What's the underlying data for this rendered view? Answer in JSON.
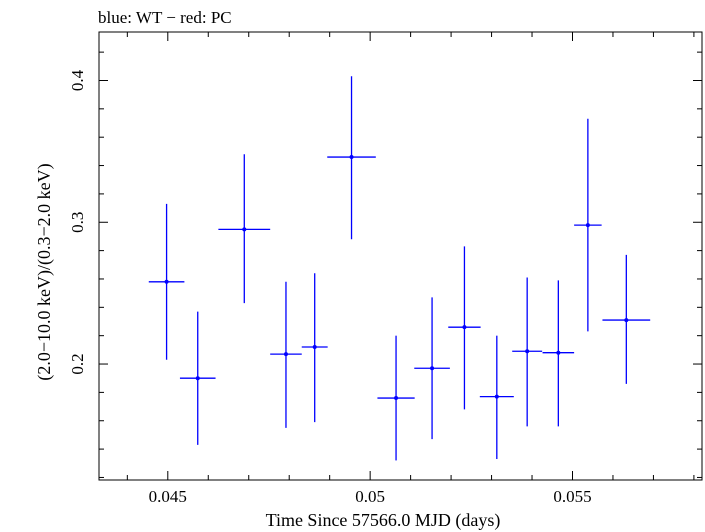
{
  "chart_data": {
    "type": "scatter",
    "title": "blue: WT − red: PC",
    "xlabel": "Time Since 57566.0 MJD (days)",
    "ylabel": "(2.0−10.0 keV)/(0.3−2.0 keV)",
    "xlim": [
      0.0433,
      0.0582
    ],
    "ylim": [
      0.1182,
      0.4342
    ],
    "x_ticks": [
      0.045,
      0.05,
      0.055
    ],
    "x_tick_labels": [
      "0.045",
      "0.05",
      "0.055"
    ],
    "y_ticks": [
      0.2,
      0.3,
      0.4
    ],
    "y_tick_labels": [
      "0.2",
      "0.3",
      "0.4"
    ],
    "grid": false,
    "series": [
      {
        "color": "#0000ff",
        "points": [
          {
            "x": 0.04497,
            "y": 0.258,
            "xerr": 0.00044,
            "ylo": 0.203,
            "yhi": 0.313
          },
          {
            "x": 0.04574,
            "y": 0.19,
            "xerr": 0.00044,
            "ylo": 0.143,
            "yhi": 0.237
          },
          {
            "x": 0.04689,
            "y": 0.295,
            "xerr": 0.00064,
            "ylo": 0.243,
            "yhi": 0.348
          },
          {
            "x": 0.04792,
            "y": 0.207,
            "xerr": 0.00039,
            "ylo": 0.155,
            "yhi": 0.258
          },
          {
            "x": 0.04863,
            "y": 0.212,
            "xerr": 0.00032,
            "ylo": 0.159,
            "yhi": 0.264
          },
          {
            "x": 0.04954,
            "y": 0.346,
            "xerr": 0.0006,
            "ylo": 0.288,
            "yhi": 0.403
          },
          {
            "x": 0.05064,
            "y": 0.176,
            "xerr": 0.00046,
            "ylo": 0.132,
            "yhi": 0.22
          },
          {
            "x": 0.05153,
            "y": 0.197,
            "xerr": 0.00044,
            "ylo": 0.147,
            "yhi": 0.247
          },
          {
            "x": 0.05233,
            "y": 0.226,
            "xerr": 0.0004,
            "ylo": 0.168,
            "yhi": 0.283
          },
          {
            "x": 0.05313,
            "y": 0.177,
            "xerr": 0.00042,
            "ylo": 0.133,
            "yhi": 0.22
          },
          {
            "x": 0.05388,
            "y": 0.209,
            "xerr": 0.00037,
            "ylo": 0.156,
            "yhi": 0.261
          },
          {
            "x": 0.05465,
            "y": 0.208,
            "xerr": 0.00039,
            "ylo": 0.156,
            "yhi": 0.259
          },
          {
            "x": 0.05538,
            "y": 0.298,
            "xerr": 0.00034,
            "ylo": 0.223,
            "yhi": 0.373
          },
          {
            "x": 0.05633,
            "y": 0.231,
            "xerr": 0.00059,
            "ylo": 0.186,
            "yhi": 0.277
          }
        ]
      }
    ]
  }
}
